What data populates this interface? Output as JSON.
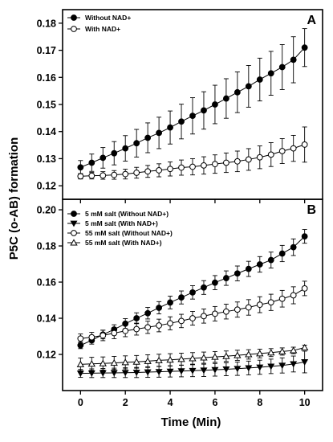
{
  "figure": {
    "ylabel": "P5C (o-AB) formation",
    "xlabel": "Time (Min)"
  },
  "chart_data": [
    {
      "type": "line",
      "panel_label": "A",
      "xlabel": "Time (Min)",
      "ylabel": "P5C (o-AB) formation",
      "xlim": [
        -0.8,
        10.8
      ],
      "ylim": [
        0.115,
        0.185
      ],
      "x_ticks": [
        0,
        2,
        4,
        6,
        8,
        10
      ],
      "y_ticks": [
        0.12,
        0.13,
        0.14,
        0.15,
        0.16,
        0.17,
        0.18
      ],
      "y_tick_labels": [
        "0.12",
        "0.13",
        "0.14",
        "0.15",
        "0.16",
        "0.17",
        "0.18"
      ],
      "x_tick_labels": [
        "0",
        "2",
        "4",
        "6",
        "8",
        "10"
      ],
      "show_x_tick_labels": false,
      "grid": false,
      "legend_position": "top-left",
      "x": [
        0,
        0.5,
        1,
        1.5,
        2,
        2.5,
        3,
        3.5,
        4,
        4.5,
        5,
        5.5,
        6,
        6.5,
        7,
        7.5,
        8,
        8.5,
        9,
        9.5,
        10
      ],
      "series": [
        {
          "name": "Without NAD+",
          "marker": "filled-circle",
          "values": [
            0.1268,
            0.1285,
            0.1303,
            0.132,
            0.1338,
            0.1357,
            0.1377,
            0.1395,
            0.1415,
            0.1437,
            0.1458,
            0.1478,
            0.15,
            0.1522,
            0.1545,
            0.1567,
            0.1592,
            0.1615,
            0.1638,
            0.1665,
            0.171
          ],
          "errors": [
            0.0025,
            0.0032,
            0.0038,
            0.0043,
            0.0047,
            0.0051,
            0.0055,
            0.0058,
            0.0061,
            0.0064,
            0.0067,
            0.0069,
            0.0071,
            0.0073,
            0.0075,
            0.0077,
            0.0079,
            0.0081,
            0.0083,
            0.0085,
            0.007
          ]
        },
        {
          "name": "With NAD+",
          "marker": "open-circle",
          "values": [
            0.1235,
            0.1237,
            0.1238,
            0.124,
            0.1243,
            0.1248,
            0.1253,
            0.1257,
            0.1262,
            0.1267,
            0.127,
            0.1275,
            0.128,
            0.1285,
            0.129,
            0.1297,
            0.1305,
            0.1315,
            0.1328,
            0.1338,
            0.1352
          ],
          "errors": [
            0.001,
            0.0012,
            0.0014,
            0.0016,
            0.0018,
            0.002,
            0.0022,
            0.0024,
            0.0026,
            0.0028,
            0.003,
            0.0032,
            0.0034,
            0.0036,
            0.0038,
            0.004,
            0.0042,
            0.0044,
            0.0046,
            0.0048,
            0.0065
          ]
        }
      ]
    },
    {
      "type": "line",
      "panel_label": "B",
      "xlabel": "Time (Min)",
      "ylabel": "P5C (o-AB) formation",
      "xlim": [
        -0.8,
        10.8
      ],
      "ylim": [
        0.1,
        0.2058
      ],
      "x_ticks": [
        0,
        2,
        4,
        6,
        8,
        10
      ],
      "y_ticks": [
        0.12,
        0.14,
        0.16,
        0.18,
        0.2
      ],
      "y_tick_labels": [
        "0.12",
        "0.14",
        "0.16",
        "0.18",
        "0.20"
      ],
      "x_tick_labels": [
        "0",
        "2",
        "4",
        "6",
        "8",
        "10"
      ],
      "show_x_tick_labels": true,
      "grid": false,
      "legend_position": "top-left",
      "x": [
        0,
        0.5,
        1,
        1.5,
        2,
        2.5,
        3,
        3.5,
        4,
        4.5,
        5,
        5.5,
        6,
        6.5,
        7,
        7.5,
        8,
        8.5,
        9,
        9.5,
        10
      ],
      "series": [
        {
          "name": "5 mM salt (Without NAD+)",
          "marker": "filled-circle",
          "values": [
            0.125,
            0.1278,
            0.131,
            0.1338,
            0.137,
            0.14,
            0.1428,
            0.1458,
            0.1487,
            0.1515,
            0.1543,
            0.157,
            0.1597,
            0.1622,
            0.1648,
            0.1673,
            0.1698,
            0.1722,
            0.1758,
            0.1793,
            0.1853
          ],
          "errors": [
            0.0018,
            0.0021,
            0.0024,
            0.0026,
            0.0028,
            0.003,
            0.0032,
            0.0034,
            0.0035,
            0.0036,
            0.0037,
            0.0038,
            0.0039,
            0.004,
            0.0041,
            0.0042,
            0.0043,
            0.0044,
            0.0045,
            0.0046,
            0.0038
          ]
        },
        {
          "name": "5 mM salt (With NAD+)",
          "marker": "filled-triangle-down",
          "values": [
            0.1095,
            0.1096,
            0.1097,
            0.1098,
            0.1099,
            0.11,
            0.1102,
            0.1104,
            0.1106,
            0.1108,
            0.111,
            0.1112,
            0.1115,
            0.1118,
            0.1121,
            0.1125,
            0.1129,
            0.1134,
            0.1139,
            0.1147,
            0.1158
          ],
          "errors": [
            0.0022,
            0.0024,
            0.0025,
            0.0026,
            0.0027,
            0.0028,
            0.0029,
            0.003,
            0.0031,
            0.0032,
            0.0033,
            0.0034,
            0.0035,
            0.0036,
            0.0037,
            0.0038,
            0.0039,
            0.004,
            0.0042,
            0.0044,
            0.006
          ]
        },
        {
          "name": "55 mM salt (Without NAD+)",
          "marker": "open-circle",
          "values": [
            0.1288,
            0.1295,
            0.1305,
            0.1318,
            0.133,
            0.134,
            0.135,
            0.136,
            0.1372,
            0.1385,
            0.14,
            0.1412,
            0.1425,
            0.1437,
            0.1448,
            0.146,
            0.1475,
            0.1488,
            0.1508,
            0.1527,
            0.1565
          ],
          "errors": [
            0.0025,
            0.0027,
            0.0029,
            0.0031,
            0.0032,
            0.0033,
            0.0034,
            0.0035,
            0.0036,
            0.0037,
            0.0038,
            0.0039,
            0.004,
            0.0041,
            0.0042,
            0.0043,
            0.0044,
            0.0045,
            0.0046,
            0.0047,
            0.004
          ]
        },
        {
          "name": "55 mM salt (With NAD+)",
          "marker": "open-triangle-up",
          "values": [
            0.1145,
            0.1148,
            0.115,
            0.1153,
            0.1156,
            0.1159,
            0.1163,
            0.1167,
            0.117,
            0.1174,
            0.1178,
            0.1182,
            0.1186,
            0.119,
            0.1195,
            0.12,
            0.1205,
            0.121,
            0.1216,
            0.1222,
            0.1238
          ],
          "errors": [
            0.0035,
            0.0036,
            0.0036,
            0.0036,
            0.0036,
            0.0035,
            0.0035,
            0.0034,
            0.0034,
            0.0033,
            0.0032,
            0.0031,
            0.003,
            0.0029,
            0.0028,
            0.0026,
            0.0024,
            0.0022,
            0.002,
            0.0018,
            0.0013
          ]
        }
      ]
    }
  ]
}
